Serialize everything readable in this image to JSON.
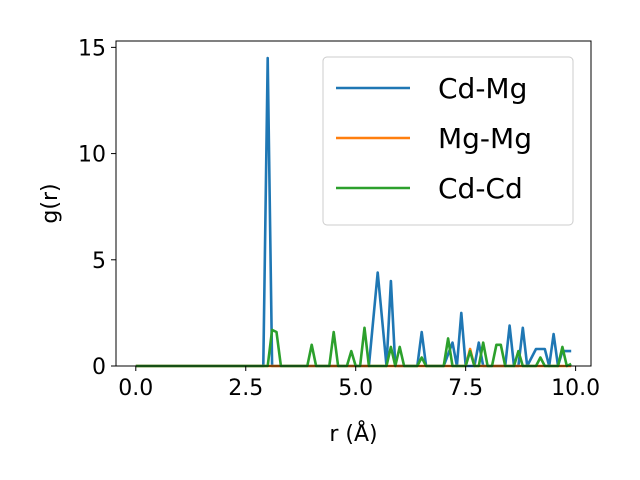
{
  "chart_data": {
    "type": "line",
    "xlabel": "r (Å)",
    "ylabel": "g(r)",
    "xlim": [
      -0.45,
      10.35
    ],
    "ylim": [
      0,
      15.3
    ],
    "xticks": [
      0.0,
      2.5,
      5.0,
      7.5,
      10.0
    ],
    "xtick_labels": [
      "0.0",
      "2.5",
      "5.0",
      "7.5",
      "10.0"
    ],
    "yticks": [
      0,
      5,
      10,
      15
    ],
    "ytick_labels": [
      "0",
      "5",
      "10",
      "15"
    ],
    "grid": false,
    "legend_position": "top-right",
    "series": [
      {
        "name": "Cd-Mg",
        "color": "#1f77b4",
        "x": [
          0,
          2.9,
          3.0,
          3.1,
          5.3,
          5.5,
          5.7,
          5.8,
          5.9,
          6.4,
          6.5,
          6.6,
          7.0,
          7.2,
          7.3,
          7.4,
          7.5,
          7.7,
          7.8,
          7.9,
          8.0,
          8.1,
          8.4,
          8.5,
          8.6,
          8.7,
          8.8,
          8.9,
          9.1,
          9.3,
          9.4,
          9.5,
          9.6,
          9.7,
          9.8,
          9.9
        ],
        "y": [
          0,
          0,
          14.5,
          0,
          0,
          4.4,
          0,
          4.0,
          0,
          0,
          1.6,
          0,
          0,
          1.1,
          0,
          2.5,
          0,
          0,
          1.1,
          0,
          0,
          0,
          0,
          1.9,
          0,
          0,
          1.8,
          0,
          0.8,
          0.8,
          0,
          1.5,
          0,
          0.7,
          0.7,
          0.7
        ]
      },
      {
        "name": "Mg-Mg",
        "color": "#ff7f0e",
        "x": [
          0,
          7.5,
          7.6,
          7.7,
          9.9
        ],
        "y": [
          0,
          0,
          0.8,
          0,
          0
        ]
      },
      {
        "name": "Cd-Cd",
        "color": "#2ca02c",
        "x": [
          0,
          3.0,
          3.1,
          3.2,
          3.3,
          3.9,
          4.0,
          4.1,
          4.4,
          4.5,
          4.6,
          4.8,
          4.9,
          5.0,
          5.1,
          5.2,
          5.3,
          5.7,
          5.8,
          5.9,
          6.0,
          6.1,
          6.2,
          6.4,
          6.5,
          6.6,
          7.0,
          7.1,
          7.2,
          7.3,
          7.5,
          7.6,
          7.7,
          7.8,
          7.9,
          8.0,
          8.1,
          8.2,
          8.3,
          8.4,
          8.5,
          8.6,
          8.7,
          8.8,
          8.9,
          9.1,
          9.2,
          9.3,
          9.5,
          9.6,
          9.7,
          9.8,
          9.9
        ],
        "y": [
          0,
          0,
          1.7,
          1.6,
          0,
          0,
          1.0,
          0,
          0,
          1.6,
          0,
          0,
          0.7,
          0,
          0,
          1.8,
          0,
          0,
          0.9,
          0,
          0.9,
          0,
          0,
          0,
          0.4,
          0,
          0,
          1.3,
          0,
          0,
          0,
          0.7,
          0,
          0,
          1.1,
          0,
          0,
          1.0,
          1.0,
          0,
          0,
          0,
          0.7,
          0,
          0,
          0,
          0.4,
          0,
          0,
          0,
          0.9,
          0,
          0.1
        ]
      }
    ]
  }
}
